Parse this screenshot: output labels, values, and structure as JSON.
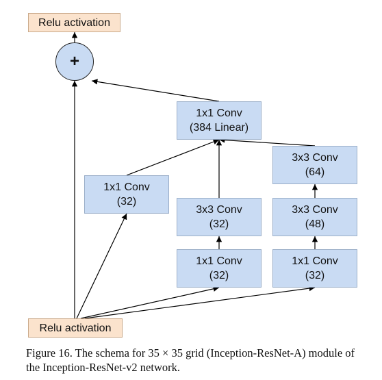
{
  "nodes": {
    "relu_top": {
      "line1": "Relu activation"
    },
    "add": {
      "symbol": "+"
    },
    "conv_384": {
      "line1": "1x1 Conv",
      "line2": "(384 Linear)"
    },
    "b1_conv1x1": {
      "line1": "1x1 Conv",
      "line2": "(32)"
    },
    "b2_conv3x3": {
      "line1": "3x3 Conv",
      "line2": "(32)"
    },
    "b2_conv1x1": {
      "line1": "1x1 Conv",
      "line2": "(32)"
    },
    "b3_conv3x3_64": {
      "line1": "3x3 Conv",
      "line2": "(64)"
    },
    "b3_conv3x3_48": {
      "line1": "3x3 Conv",
      "line2": "(48)"
    },
    "b3_conv1x1": {
      "line1": "1x1 Conv",
      "line2": "(32)"
    },
    "relu_bottom": {
      "line1": "Relu activation"
    }
  },
  "edges": [
    [
      "relu_bottom",
      "add"
    ],
    [
      "relu_bottom",
      "b1_conv1x1"
    ],
    [
      "relu_bottom",
      "b2_conv1x1"
    ],
    [
      "relu_bottom",
      "b3_conv1x1"
    ],
    [
      "b2_conv1x1",
      "b2_conv3x3"
    ],
    [
      "b3_conv1x1",
      "b3_conv3x3_48"
    ],
    [
      "b3_conv3x3_48",
      "b3_conv3x3_64"
    ],
    [
      "b1_conv1x1",
      "conv_384"
    ],
    [
      "b2_conv3x3",
      "conv_384"
    ],
    [
      "b3_conv3x3_64",
      "conv_384"
    ],
    [
      "conv_384",
      "add"
    ],
    [
      "add",
      "relu_top"
    ]
  ],
  "caption": "Figure 16. The schema for 35 × 35 grid (Inception-ResNet-A) module of the Inception-ResNet-v2 network."
}
